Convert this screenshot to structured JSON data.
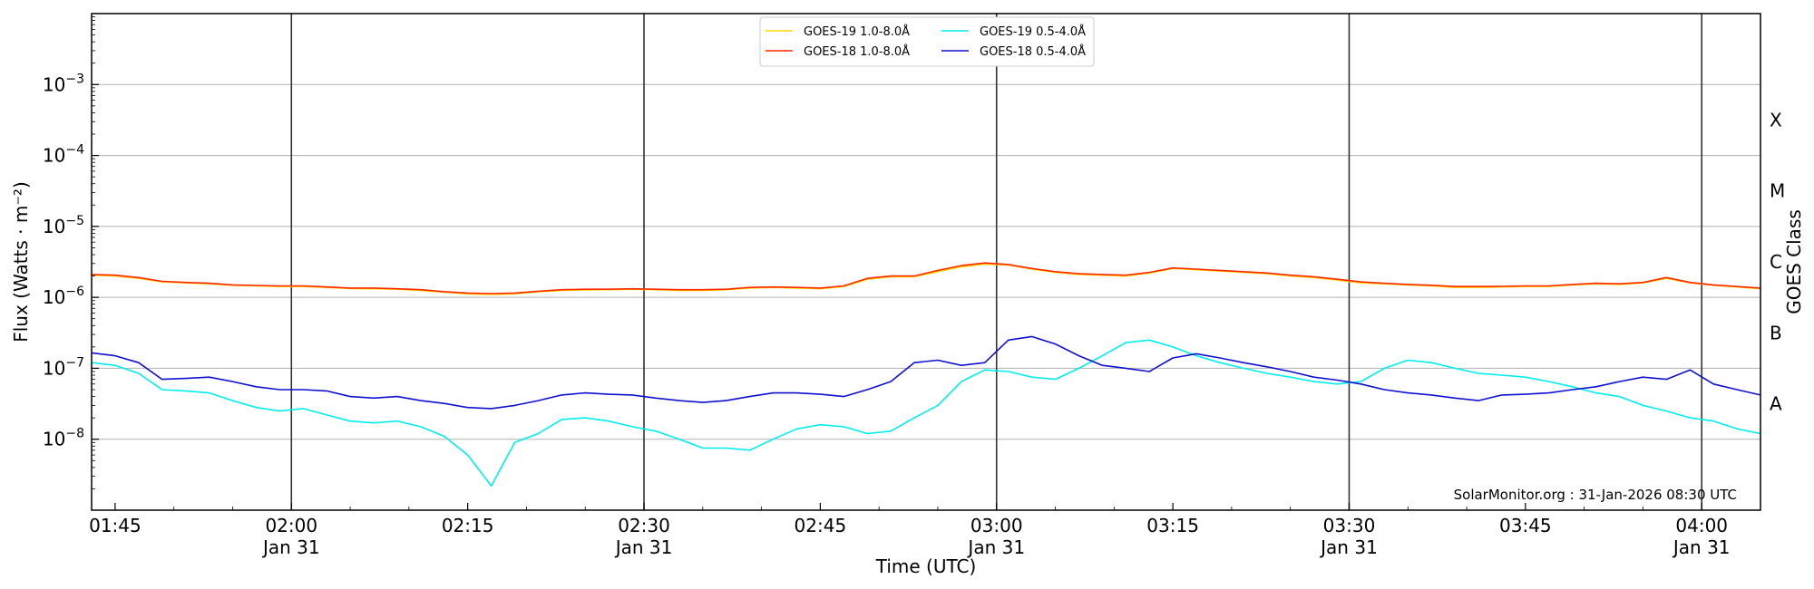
{
  "chart_data": {
    "type": "line",
    "xlabel": "Time (UTC)",
    "ylabel": "Flux (Watts · m⁻²)",
    "y2label": "GOES Class",
    "yscale": "log",
    "ylim": [
      1e-09,
      0.01
    ],
    "xlim": [
      "01:43",
      "04:05"
    ],
    "grid": "horizontal",
    "legend_position": "top-center",
    "credit": "SolarMonitor.org : 31-Jan-2026 08:30 UTC",
    "x_ticks": [
      {
        "time": "01:45",
        "label": "01:45",
        "date": ""
      },
      {
        "time": "02:00",
        "label": "02:00",
        "date": "Jan 31"
      },
      {
        "time": "02:15",
        "label": "02:15",
        "date": ""
      },
      {
        "time": "02:30",
        "label": "02:30",
        "date": "Jan 31"
      },
      {
        "time": "02:45",
        "label": "02:45",
        "date": ""
      },
      {
        "time": "03:00",
        "label": "03:00",
        "date": "Jan 31"
      },
      {
        "time": "03:15",
        "label": "03:15",
        "date": ""
      },
      {
        "time": "03:30",
        "label": "03:30",
        "date": "Jan 31"
      },
      {
        "time": "03:45",
        "label": "03:45",
        "date": ""
      },
      {
        "time": "04:00",
        "label": "04:00",
        "date": "Jan 31"
      }
    ],
    "y_ticks": [
      {
        "value": 1e-08,
        "base": "10",
        "exp": "−8"
      },
      {
        "value": 1e-07,
        "base": "10",
        "exp": "−7"
      },
      {
        "value": 1e-06,
        "base": "10",
        "exp": "−6"
      },
      {
        "value": 1e-05,
        "base": "10",
        "exp": "−5"
      },
      {
        "value": 0.0001,
        "base": "10",
        "exp": "−4"
      },
      {
        "value": 0.001,
        "base": "10",
        "exp": "−3"
      }
    ],
    "vlines": [
      "02:00",
      "02:30",
      "03:00",
      "03:30",
      "04:00"
    ],
    "goes_classes": [
      {
        "label": "A",
        "value": 3.16e-08
      },
      {
        "label": "B",
        "value": 3.16e-07
      },
      {
        "label": "C",
        "value": 3.16e-06
      },
      {
        "label": "M",
        "value": 3.16e-05
      },
      {
        "label": "X",
        "value": 0.000316
      }
    ],
    "x": [
      "01:43",
      "01:45",
      "01:47",
      "01:49",
      "01:51",
      "01:53",
      "01:55",
      "01:57",
      "01:59",
      "02:01",
      "02:03",
      "02:05",
      "02:07",
      "02:09",
      "02:11",
      "02:13",
      "02:15",
      "02:17",
      "02:19",
      "02:21",
      "02:23",
      "02:25",
      "02:27",
      "02:29",
      "02:31",
      "02:33",
      "02:35",
      "02:37",
      "02:39",
      "02:41",
      "02:43",
      "02:45",
      "02:47",
      "02:49",
      "02:51",
      "02:53",
      "02:55",
      "02:57",
      "02:59",
      "03:01",
      "03:03",
      "03:05",
      "03:07",
      "03:09",
      "03:11",
      "03:13",
      "03:15",
      "03:17",
      "03:19",
      "03:21",
      "03:23",
      "03:25",
      "03:27",
      "03:29",
      "03:31",
      "03:33",
      "03:35",
      "03:37",
      "03:39",
      "03:41",
      "03:43",
      "03:45",
      "03:47",
      "03:49",
      "03:51",
      "03:53",
      "03:55",
      "03:57",
      "03:59",
      "04:01",
      "04:03",
      "04:05"
    ],
    "series": [
      {
        "name": "GOES-19 1.0-8.0Å",
        "color": "#ffd700",
        "values": [
          2.05e-06,
          2e-06,
          1.85e-06,
          1.65e-06,
          1.6e-06,
          1.55e-06,
          1.48e-06,
          1.45e-06,
          1.42e-06,
          1.42e-06,
          1.38e-06,
          1.33e-06,
          1.32e-06,
          1.3e-06,
          1.25e-06,
          1.18e-06,
          1.12e-06,
          1.1e-06,
          1.12e-06,
          1.2e-06,
          1.25e-06,
          1.27e-06,
          1.28e-06,
          1.3e-06,
          1.28e-06,
          1.25e-06,
          1.25e-06,
          1.28e-06,
          1.35e-06,
          1.38e-06,
          1.35e-06,
          1.32e-06,
          1.42e-06,
          1.8e-06,
          1.95e-06,
          1.95e-06,
          2.3e-06,
          2.7e-06,
          2.95e-06,
          2.85e-06,
          2.5e-06,
          2.25e-06,
          2.1e-06,
          2.05e-06,
          2e-06,
          2.2e-06,
          2.55e-06,
          2.45e-06,
          2.35e-06,
          2.25e-06,
          2.15e-06,
          2e-06,
          1.9e-06,
          1.75e-06,
          1.6e-06,
          1.55e-06,
          1.5e-06,
          1.45e-06,
          1.38e-06,
          1.38e-06,
          1.4e-06,
          1.42e-06,
          1.42e-06,
          1.5e-06,
          1.55e-06,
          1.52e-06,
          1.6e-06,
          1.85e-06,
          1.6e-06,
          1.48e-06,
          1.4e-06,
          1.32e-06
        ]
      },
      {
        "name": "GOES-18 1.0-8.0Å",
        "color": "#ff2a00",
        "values": [
          2.1e-06,
          2.05e-06,
          1.9e-06,
          1.68e-06,
          1.62e-06,
          1.58e-06,
          1.5e-06,
          1.47e-06,
          1.45e-06,
          1.45e-06,
          1.4e-06,
          1.35e-06,
          1.35e-06,
          1.32e-06,
          1.28e-06,
          1.2e-06,
          1.15e-06,
          1.13e-06,
          1.15e-06,
          1.22e-06,
          1.28e-06,
          1.3e-06,
          1.3e-06,
          1.32e-06,
          1.3e-06,
          1.28e-06,
          1.28e-06,
          1.3e-06,
          1.38e-06,
          1.4e-06,
          1.38e-06,
          1.35e-06,
          1.45e-06,
          1.85e-06,
          2e-06,
          2e-06,
          2.4e-06,
          2.8e-06,
          3.05e-06,
          2.9e-06,
          2.55e-06,
          2.3e-06,
          2.15e-06,
          2.1e-06,
          2.05e-06,
          2.25e-06,
          2.6e-06,
          2.5e-06,
          2.4e-06,
          2.3e-06,
          2.2e-06,
          2.05e-06,
          1.95e-06,
          1.8e-06,
          1.65e-06,
          1.58e-06,
          1.52e-06,
          1.48e-06,
          1.42e-06,
          1.42e-06,
          1.43e-06,
          1.45e-06,
          1.45e-06,
          1.52e-06,
          1.58e-06,
          1.55e-06,
          1.62e-06,
          1.9e-06,
          1.62e-06,
          1.5e-06,
          1.42e-06,
          1.35e-06
        ]
      },
      {
        "name": "GOES-19 0.5-4.0Å",
        "color": "#00eeee",
        "values": [
          1.2e-07,
          1.1e-07,
          8.5e-08,
          5e-08,
          4.8e-08,
          4.5e-08,
          3.5e-08,
          2.8e-08,
          2.5e-08,
          2.7e-08,
          2.2e-08,
          1.8e-08,
          1.7e-08,
          1.8e-08,
          1.5e-08,
          1.1e-08,
          6e-09,
          2.2e-09,
          9e-09,
          1.2e-08,
          1.9e-08,
          2e-08,
          1.8e-08,
          1.5e-08,
          1.3e-08,
          1e-08,
          7.5e-09,
          7.5e-09,
          7e-09,
          1e-08,
          1.4e-08,
          1.6e-08,
          1.5e-08,
          1.2e-08,
          1.3e-08,
          2e-08,
          3e-08,
          6.5e-08,
          9.5e-08,
          9e-08,
          7.5e-08,
          7e-08,
          1e-07,
          1.5e-07,
          2.3e-07,
          2.5e-07,
          2e-07,
          1.5e-07,
          1.2e-07,
          1e-07,
          8.5e-08,
          7.5e-08,
          6.5e-08,
          6e-08,
          6.5e-08,
          1e-07,
          1.3e-07,
          1.2e-07,
          1e-07,
          8.5e-08,
          8e-08,
          7.5e-08,
          6.5e-08,
          5.5e-08,
          4.5e-08,
          4e-08,
          3e-08,
          2.5e-08,
          2e-08,
          1.8e-08,
          1.4e-08,
          1.2e-08
        ]
      },
      {
        "name": "GOES-18 0.5-4.0Å",
        "color": "#1010d0",
        "values": [
          1.65e-07,
          1.5e-07,
          1.2e-07,
          7e-08,
          7.2e-08,
          7.5e-08,
          6.5e-08,
          5.5e-08,
          5e-08,
          5e-08,
          4.8e-08,
          4e-08,
          3.8e-08,
          4e-08,
          3.5e-08,
          3.2e-08,
          2.8e-08,
          2.7e-08,
          3e-08,
          3.5e-08,
          4.2e-08,
          4.5e-08,
          4.3e-08,
          4.2e-08,
          3.8e-08,
          3.5e-08,
          3.3e-08,
          3.5e-08,
          4e-08,
          4.5e-08,
          4.5e-08,
          4.3e-08,
          4e-08,
          5e-08,
          6.5e-08,
          1.2e-07,
          1.3e-07,
          1.1e-07,
          1.2e-07,
          2.5e-07,
          2.8e-07,
          2.2e-07,
          1.5e-07,
          1.1e-07,
          1e-07,
          9e-08,
          1.4e-07,
          1.6e-07,
          1.4e-07,
          1.2e-07,
          1.05e-07,
          9e-08,
          7.5e-08,
          6.8e-08,
          6e-08,
          5e-08,
          4.5e-08,
          4.2e-08,
          3.8e-08,
          3.5e-08,
          4.2e-08,
          4.3e-08,
          4.5e-08,
          5e-08,
          5.5e-08,
          6.5e-08,
          7.5e-08,
          7e-08,
          9.5e-08,
          6e-08,
          5e-08,
          4.2e-08
        ]
      }
    ]
  }
}
